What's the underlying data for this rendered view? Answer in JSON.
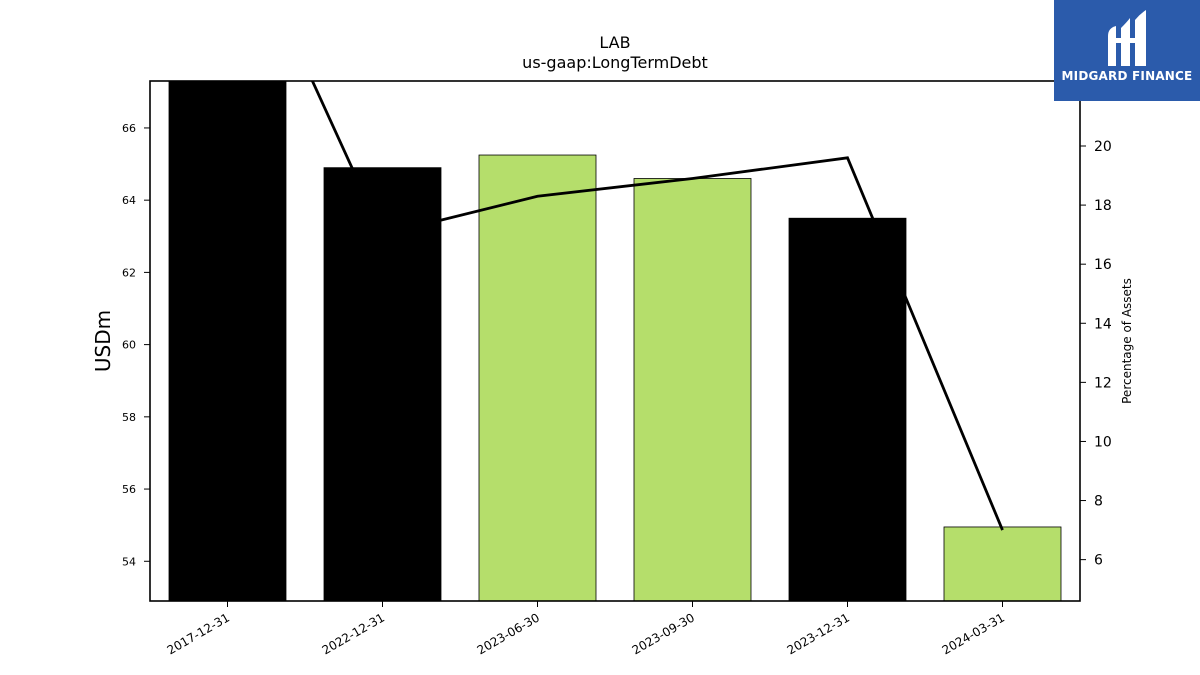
{
  "chart_data": {
    "type": "bar",
    "title": "LAB",
    "subtitle": "us-gaap:LongTermDebt",
    "categories": [
      "2017-12-31",
      "2022-12-31",
      "2023-06-30",
      "2023-09-30",
      "2023-12-31",
      "2024-03-31"
    ],
    "bar_series": {
      "values": [
        67.3,
        64.9,
        65.25,
        64.6,
        63.5,
        54.95
      ],
      "colors": [
        "#000000",
        "#000000",
        "#b5de6b",
        "#b5de6b",
        "#000000",
        "#b5de6b"
      ]
    },
    "line_series": {
      "axis": "right",
      "color": "#000000",
      "values": [
        28.5,
        17.0,
        18.3,
        18.9,
        19.6,
        7.0
      ]
    },
    "ylabel": "USDm",
    "ylim": [
      52.9,
      67.3
    ],
    "yticks": [
      54,
      56,
      58,
      60,
      62,
      64,
      66
    ],
    "ylabel_right": "Percentage of Assets",
    "ylim_right": [
      4.6,
      22.2
    ],
    "yticks_right": [
      6,
      8,
      10,
      12,
      14,
      16,
      18,
      20
    ],
    "grid": false,
    "legend": "none"
  },
  "logo": {
    "text": "MIDGARD FINANCE",
    "background": "#2b5bab"
  }
}
